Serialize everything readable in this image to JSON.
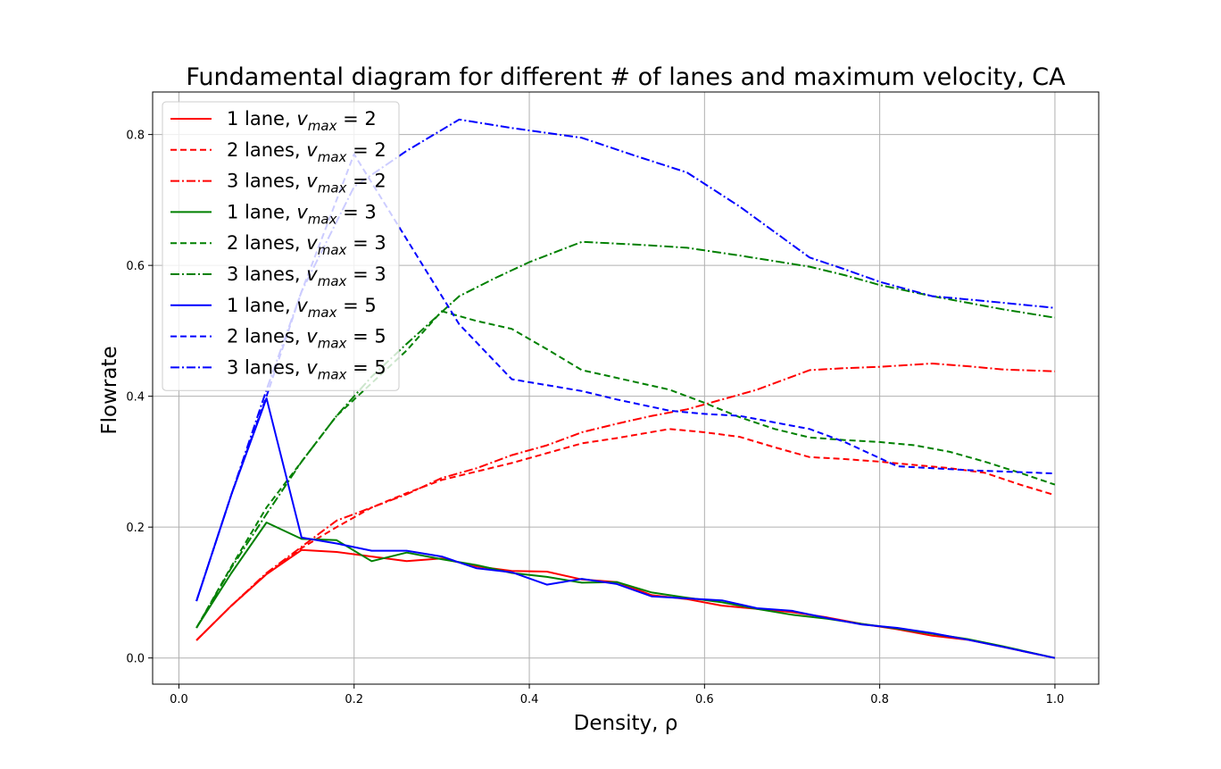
{
  "chart_data": {
    "type": "line",
    "title": "Fundamental diagram for different # of lanes and maximum velocity, CA",
    "xlabel": "Density, ρ",
    "ylabel": "Flowrate",
    "xlim": [
      -0.03,
      1.05
    ],
    "ylim": [
      -0.04,
      0.865
    ],
    "xticks": [
      0.0,
      0.2,
      0.4,
      0.6,
      0.8,
      1.0
    ],
    "xtick_labels": [
      "0.0",
      "0.2",
      "0.4",
      "0.6",
      "0.8",
      "1.0"
    ],
    "yticks": [
      0.0,
      0.2,
      0.4,
      0.6,
      0.8
    ],
    "ytick_labels": [
      "0.0",
      "0.2",
      "0.4",
      "0.6",
      "0.8"
    ],
    "grid": true,
    "legend_position": "top-left",
    "series": [
      {
        "name": "1 lane, v_max = 2",
        "label_main": "1 lane, ",
        "vmax": "2",
        "color": "#ff0000",
        "style": "solid",
        "x": [
          0.02,
          0.06,
          0.1,
          0.14,
          0.18,
          0.22,
          0.26,
          0.3,
          0.34,
          0.38,
          0.42,
          0.46,
          0.5,
          0.54,
          0.58,
          0.62,
          0.66,
          0.7,
          0.74,
          0.78,
          0.82,
          0.86,
          0.9,
          0.94,
          1.0
        ],
        "y": [
          0.027,
          0.08,
          0.128,
          0.165,
          0.162,
          0.155,
          0.148,
          0.152,
          0.14,
          0.133,
          0.132,
          0.12,
          0.116,
          0.096,
          0.09,
          0.08,
          0.075,
          0.07,
          0.062,
          0.052,
          0.044,
          0.034,
          0.028,
          0.017,
          0.0
        ]
      },
      {
        "name": "2 lanes, v_max = 2",
        "label_main": "2 lanes, ",
        "vmax": "2",
        "color": "#ff0000",
        "style": "dashed",
        "x": [
          0.02,
          0.06,
          0.1,
          0.14,
          0.18,
          0.22,
          0.26,
          0.3,
          0.34,
          0.38,
          0.42,
          0.46,
          0.5,
          0.56,
          0.6,
          0.64,
          0.68,
          0.72,
          0.76,
          0.8,
          0.84,
          0.88,
          0.92,
          0.96,
          1.0
        ],
        "y": [
          0.027,
          0.08,
          0.128,
          0.168,
          0.2,
          0.23,
          0.252,
          0.272,
          0.285,
          0.298,
          0.313,
          0.328,
          0.336,
          0.35,
          0.345,
          0.338,
          0.322,
          0.307,
          0.304,
          0.3,
          0.295,
          0.29,
          0.283,
          0.265,
          0.249
        ]
      },
      {
        "name": "3 lanes, v_max = 2",
        "label_main": "3 lanes, ",
        "vmax": "2",
        "color": "#ff0000",
        "style": "dashdot",
        "x": [
          0.02,
          0.06,
          0.1,
          0.14,
          0.18,
          0.22,
          0.26,
          0.3,
          0.34,
          0.38,
          0.42,
          0.46,
          0.5,
          0.54,
          0.58,
          0.62,
          0.66,
          0.72,
          0.76,
          0.8,
          0.86,
          0.9,
          0.94,
          1.0
        ],
        "y": [
          0.027,
          0.08,
          0.13,
          0.17,
          0.21,
          0.23,
          0.25,
          0.275,
          0.29,
          0.31,
          0.325,
          0.345,
          0.358,
          0.37,
          0.38,
          0.395,
          0.41,
          0.44,
          0.443,
          0.445,
          0.45,
          0.446,
          0.441,
          0.438
        ]
      },
      {
        "name": "1 lane, v_max = 3",
        "label_main": "1 lane, ",
        "vmax": "3",
        "color": "#008000",
        "style": "solid",
        "x": [
          0.02,
          0.06,
          0.1,
          0.14,
          0.18,
          0.22,
          0.26,
          0.3,
          0.34,
          0.38,
          0.42,
          0.46,
          0.5,
          0.54,
          0.58,
          0.62,
          0.66,
          0.7,
          0.74,
          0.78,
          0.82,
          0.86,
          0.9,
          0.94,
          1.0
        ],
        "y": [
          0.046,
          0.13,
          0.207,
          0.182,
          0.18,
          0.148,
          0.161,
          0.151,
          0.142,
          0.13,
          0.124,
          0.115,
          0.116,
          0.1,
          0.092,
          0.085,
          0.075,
          0.066,
          0.06,
          0.052,
          0.045,
          0.037,
          0.029,
          0.018,
          0.0
        ]
      },
      {
        "name": "2 lanes, v_max = 3",
        "label_main": "2 lanes, ",
        "vmax": "3",
        "color": "#008000",
        "style": "dashed",
        "x": [
          0.02,
          0.06,
          0.1,
          0.14,
          0.18,
          0.22,
          0.26,
          0.3,
          0.34,
          0.38,
          0.42,
          0.46,
          0.5,
          0.56,
          0.6,
          0.64,
          0.68,
          0.72,
          0.76,
          0.8,
          0.84,
          0.88,
          0.92,
          0.96,
          1.0
        ],
        "y": [
          0.046,
          0.14,
          0.23,
          0.3,
          0.37,
          0.42,
          0.47,
          0.53,
          0.515,
          0.503,
          0.472,
          0.44,
          0.428,
          0.41,
          0.39,
          0.368,
          0.35,
          0.337,
          0.333,
          0.33,
          0.325,
          0.315,
          0.3,
          0.283,
          0.265
        ]
      },
      {
        "name": "3 lanes, v_max = 3",
        "label_main": "3 lanes, ",
        "vmax": "3",
        "color": "#008000",
        "style": "dashdot",
        "x": [
          0.02,
          0.06,
          0.1,
          0.14,
          0.18,
          0.22,
          0.26,
          0.32,
          0.36,
          0.4,
          0.46,
          0.52,
          0.58,
          0.64,
          0.72,
          0.76,
          0.8,
          0.86,
          0.9,
          0.94,
          1.0
        ],
        "y": [
          0.046,
          0.138,
          0.22,
          0.3,
          0.37,
          0.43,
          0.48,
          0.553,
          0.58,
          0.605,
          0.636,
          0.632,
          0.627,
          0.615,
          0.598,
          0.585,
          0.57,
          0.553,
          0.543,
          0.533,
          0.52
        ]
      },
      {
        "name": "1 lane, v_max = 5",
        "label_main": "1 lane, ",
        "vmax": "5",
        "color": "#0000ff",
        "style": "solid",
        "x": [
          0.02,
          0.06,
          0.1,
          0.14,
          0.18,
          0.22,
          0.26,
          0.3,
          0.34,
          0.38,
          0.42,
          0.46,
          0.5,
          0.54,
          0.58,
          0.62,
          0.66,
          0.7,
          0.74,
          0.78,
          0.82,
          0.86,
          0.9,
          0.94,
          1.0
        ],
        "y": [
          0.087,
          0.25,
          0.397,
          0.184,
          0.175,
          0.164,
          0.164,
          0.155,
          0.137,
          0.131,
          0.112,
          0.121,
          0.113,
          0.094,
          0.091,
          0.088,
          0.076,
          0.072,
          0.061,
          0.051,
          0.046,
          0.038,
          0.028,
          0.017,
          0.0
        ]
      },
      {
        "name": "2 lanes, v_max = 5",
        "label_main": "2 lanes, ",
        "vmax": "5",
        "color": "#0000ff",
        "style": "dashed",
        "x": [
          0.02,
          0.06,
          0.1,
          0.14,
          0.2,
          0.26,
          0.32,
          0.38,
          0.46,
          0.5,
          0.56,
          0.6,
          0.64,
          0.68,
          0.72,
          0.76,
          0.82,
          0.86,
          0.9,
          0.94,
          1.0
        ],
        "y": [
          0.087,
          0.25,
          0.4,
          0.56,
          0.77,
          0.64,
          0.51,
          0.426,
          0.408,
          0.395,
          0.378,
          0.373,
          0.37,
          0.36,
          0.35,
          0.33,
          0.293,
          0.29,
          0.287,
          0.285,
          0.282
        ]
      },
      {
        "name": "3 lanes, v_max = 5",
        "label_main": "3 lanes, ",
        "vmax": "5",
        "color": "#0000ff",
        "style": "dashdot",
        "x": [
          0.02,
          0.06,
          0.1,
          0.14,
          0.2,
          0.26,
          0.32,
          0.38,
          0.46,
          0.52,
          0.58,
          0.64,
          0.72,
          0.76,
          0.8,
          0.86,
          0.9,
          0.94,
          1.0
        ],
        "y": [
          0.087,
          0.25,
          0.41,
          0.56,
          0.72,
          0.775,
          0.823,
          0.81,
          0.795,
          0.768,
          0.742,
          0.69,
          0.612,
          0.594,
          0.575,
          0.553,
          0.548,
          0.543,
          0.535
        ]
      }
    ]
  }
}
